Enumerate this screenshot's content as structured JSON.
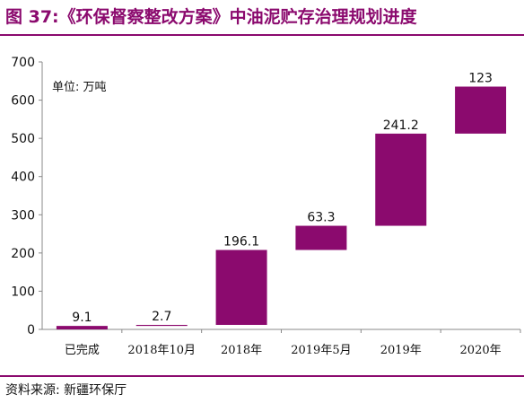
{
  "figure": {
    "title": "图 37:《环保督察整改方案》中油泥贮存治理规划进度",
    "unit_label": "单位: 万吨",
    "source": "资料来源: 新疆环保厅"
  },
  "colors": {
    "accent": "#8B0A6E",
    "bar": "#8B0A6E"
  },
  "chart_data": {
    "type": "bar",
    "subtype": "waterfall",
    "categories": [
      "已完成",
      "2018年10月",
      "2018年",
      "2019年5月",
      "2019年",
      "2020年"
    ],
    "values": [
      9.1,
      2.7,
      196.1,
      63.3,
      241.2,
      123
    ],
    "data_labels": [
      "9.1",
      "2.7",
      "196.1",
      "63.3",
      "241.2",
      "123"
    ],
    "y_ticks": [
      0,
      100,
      200,
      300,
      400,
      500,
      600,
      700
    ],
    "ylim": [
      0,
      700
    ],
    "grid": false,
    "legend": "none"
  }
}
